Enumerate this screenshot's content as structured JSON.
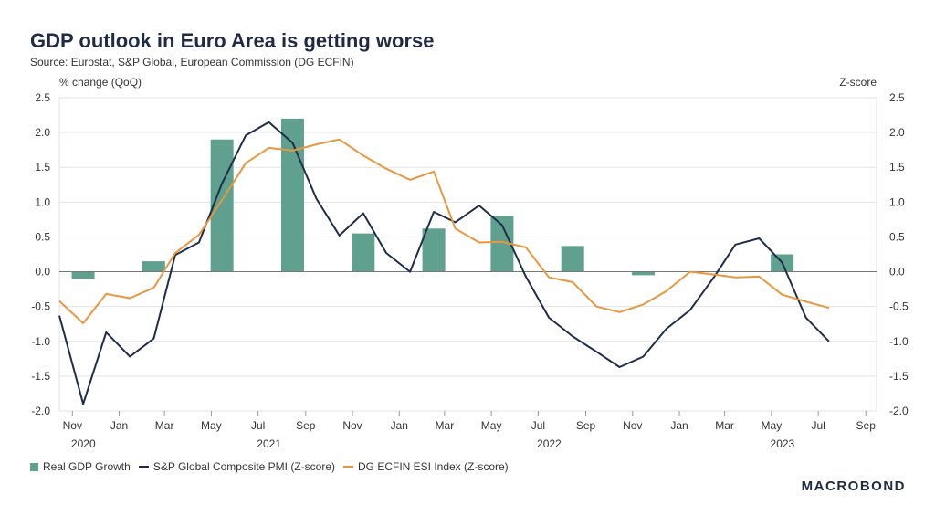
{
  "title": "GDP outlook in Euro Area is getting worse",
  "subtitle": "Source: Eurostat, S&P Global, European Commission (DG ECFIN)",
  "logo": "MACROBOND",
  "colors": {
    "gdp": "#5fa08f",
    "pmi": "#1f2d4a",
    "esi": "#e8973e",
    "grid": "#e3e3e3",
    "zero": "#777777"
  },
  "chart_data": {
    "type": "bar",
    "title": "GDP outlook in Euro Area is getting worse",
    "y_left_label": "% change (QoQ)",
    "y_right_label": "Z-score",
    "ylim": [
      -2.0,
      2.5
    ],
    "y_ticks": [
      "2.5",
      "2.0",
      "1.5",
      "1.0",
      "0.5",
      "0.0",
      "-0.5",
      "-1.0",
      "-1.5",
      "-2.0"
    ],
    "x_range": [
      "2020-10-15",
      "2023-09-15"
    ],
    "x_ticks": [
      {
        "date": "2020-11-01",
        "label": "Nov",
        "year": "2020"
      },
      {
        "date": "2021-01-01",
        "label": "Jan",
        "year": ""
      },
      {
        "date": "2021-03-01",
        "label": "Mar",
        "year": ""
      },
      {
        "date": "2021-05-01",
        "label": "May",
        "year": ""
      },
      {
        "date": "2021-07-01",
        "label": "Jul",
        "year": "2021"
      },
      {
        "date": "2021-09-01",
        "label": "Sep",
        "year": ""
      },
      {
        "date": "2021-11-01",
        "label": "Nov",
        "year": ""
      },
      {
        "date": "2022-01-01",
        "label": "Jan",
        "year": ""
      },
      {
        "date": "2022-03-01",
        "label": "Mar",
        "year": ""
      },
      {
        "date": "2022-05-01",
        "label": "May",
        "year": ""
      },
      {
        "date": "2022-07-01",
        "label": "Jul",
        "year": "2022"
      },
      {
        "date": "2022-09-01",
        "label": "Sep",
        "year": ""
      },
      {
        "date": "2022-11-01",
        "label": "Nov",
        "year": ""
      },
      {
        "date": "2023-01-01",
        "label": "Jan",
        "year": ""
      },
      {
        "date": "2023-03-01",
        "label": "Mar",
        "year": ""
      },
      {
        "date": "2023-05-01",
        "label": "May",
        "year": "2023"
      },
      {
        "date": "2023-07-01",
        "label": "Jul",
        "year": ""
      },
      {
        "date": "2023-09-01",
        "label": "Sep",
        "year": ""
      }
    ],
    "grid": true,
    "legend_position": "bottom-left",
    "series": [
      {
        "name": "Real GDP Growth",
        "type": "bar",
        "points": [
          {
            "x": "2020-11-15",
            "y": -0.1
          },
          {
            "x": "2021-02-15",
            "y": 0.15
          },
          {
            "x": "2021-05-15",
            "y": 1.9
          },
          {
            "x": "2021-08-15",
            "y": 2.2
          },
          {
            "x": "2021-11-15",
            "y": 0.55
          },
          {
            "x": "2022-02-15",
            "y": 0.62
          },
          {
            "x": "2022-05-15",
            "y": 0.8
          },
          {
            "x": "2022-08-15",
            "y": 0.37
          },
          {
            "x": "2022-11-15",
            "y": -0.05
          },
          {
            "x": "2023-02-15",
            "y": 0.0
          },
          {
            "x": "2023-05-15",
            "y": 0.25
          }
        ]
      },
      {
        "name": "S&P Global Composite PMI (Z-score)",
        "type": "line",
        "points": [
          {
            "x": "2020-10-15",
            "y": -0.63
          },
          {
            "x": "2020-11-15",
            "y": -1.9
          },
          {
            "x": "2020-12-15",
            "y": -0.87
          },
          {
            "x": "2021-01-15",
            "y": -1.22
          },
          {
            "x": "2021-02-15",
            "y": -0.96
          },
          {
            "x": "2021-03-15",
            "y": 0.24
          },
          {
            "x": "2021-04-15",
            "y": 0.42
          },
          {
            "x": "2021-05-15",
            "y": 1.27
          },
          {
            "x": "2021-06-15",
            "y": 1.96
          },
          {
            "x": "2021-07-15",
            "y": 2.15
          },
          {
            "x": "2021-08-15",
            "y": 1.85
          },
          {
            "x": "2021-09-15",
            "y": 1.05
          },
          {
            "x": "2021-10-15",
            "y": 0.52
          },
          {
            "x": "2021-11-15",
            "y": 0.84
          },
          {
            "x": "2021-12-15",
            "y": 0.27
          },
          {
            "x": "2022-01-15",
            "y": 0.0
          },
          {
            "x": "2022-02-15",
            "y": 0.86
          },
          {
            "x": "2022-03-15",
            "y": 0.71
          },
          {
            "x": "2022-04-15",
            "y": 0.95
          },
          {
            "x": "2022-05-15",
            "y": 0.67
          },
          {
            "x": "2022-06-15",
            "y": -0.07
          },
          {
            "x": "2022-07-15",
            "y": -0.66
          },
          {
            "x": "2022-08-15",
            "y": -0.93
          },
          {
            "x": "2022-09-15",
            "y": -1.15
          },
          {
            "x": "2022-10-15",
            "y": -1.37
          },
          {
            "x": "2022-11-15",
            "y": -1.22
          },
          {
            "x": "2022-12-15",
            "y": -0.82
          },
          {
            "x": "2023-01-15",
            "y": -0.55
          },
          {
            "x": "2023-02-15",
            "y": -0.08
          },
          {
            "x": "2023-03-15",
            "y": 0.39
          },
          {
            "x": "2023-04-15",
            "y": 0.48
          },
          {
            "x": "2023-05-15",
            "y": 0.13
          },
          {
            "x": "2023-06-15",
            "y": -0.66
          },
          {
            "x": "2023-07-15",
            "y": -1.0
          }
        ]
      },
      {
        "name": "DG ECFIN ESI Index (Z-score)",
        "type": "line",
        "points": [
          {
            "x": "2020-10-15",
            "y": -0.42
          },
          {
            "x": "2020-11-15",
            "y": -0.74
          },
          {
            "x": "2020-12-15",
            "y": -0.32
          },
          {
            "x": "2021-01-15",
            "y": -0.38
          },
          {
            "x": "2021-02-15",
            "y": -0.23
          },
          {
            "x": "2021-03-15",
            "y": 0.27
          },
          {
            "x": "2021-04-15",
            "y": 0.53
          },
          {
            "x": "2021-05-15",
            "y": 1.03
          },
          {
            "x": "2021-06-15",
            "y": 1.56
          },
          {
            "x": "2021-07-15",
            "y": 1.78
          },
          {
            "x": "2021-08-15",
            "y": 1.74
          },
          {
            "x": "2021-09-15",
            "y": 1.83
          },
          {
            "x": "2021-10-15",
            "y": 1.9
          },
          {
            "x": "2021-11-15",
            "y": 1.67
          },
          {
            "x": "2021-12-15",
            "y": 1.48
          },
          {
            "x": "2022-01-15",
            "y": 1.32
          },
          {
            "x": "2022-02-15",
            "y": 1.44
          },
          {
            "x": "2022-03-15",
            "y": 0.62
          },
          {
            "x": "2022-04-15",
            "y": 0.42
          },
          {
            "x": "2022-05-15",
            "y": 0.43
          },
          {
            "x": "2022-06-15",
            "y": 0.35
          },
          {
            "x": "2022-07-15",
            "y": -0.08
          },
          {
            "x": "2022-08-15",
            "y": -0.15
          },
          {
            "x": "2022-09-15",
            "y": -0.5
          },
          {
            "x": "2022-10-15",
            "y": -0.58
          },
          {
            "x": "2022-11-15",
            "y": -0.47
          },
          {
            "x": "2022-12-15",
            "y": -0.28
          },
          {
            "x": "2023-01-15",
            "y": 0.0
          },
          {
            "x": "2023-02-15",
            "y": -0.04
          },
          {
            "x": "2023-03-15",
            "y": -0.08
          },
          {
            "x": "2023-04-15",
            "y": -0.07
          },
          {
            "x": "2023-05-15",
            "y": -0.33
          },
          {
            "x": "2023-06-15",
            "y": -0.43
          },
          {
            "x": "2023-07-15",
            "y": -0.52
          }
        ]
      }
    ]
  }
}
